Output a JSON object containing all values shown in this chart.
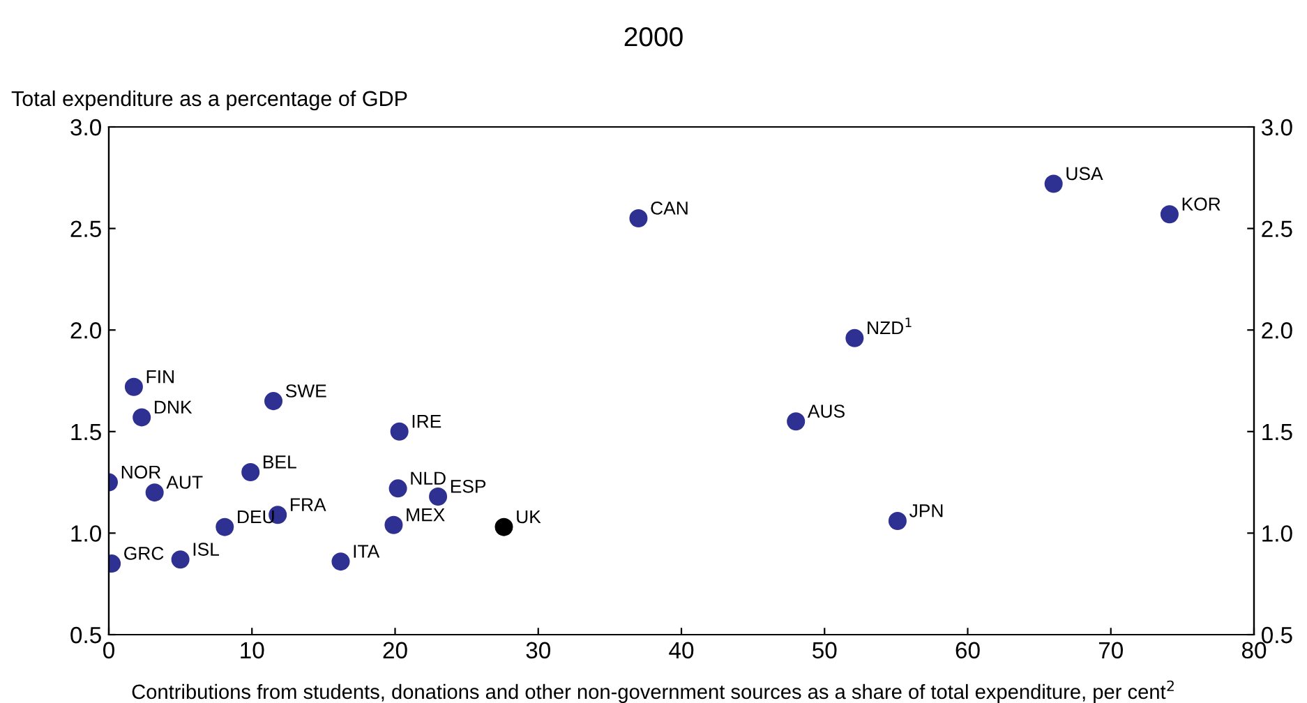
{
  "chart_data": {
    "type": "scatter",
    "title": "2000",
    "ylabel": "Total expenditure as a percentage of GDP",
    "xlabel": "Contributions from students, donations and other non-government sources as a share of total expenditure, per cent$^{2}$",
    "x": [
      0,
      0.2,
      1.75,
      2.3,
      3.2,
      5,
      8.1,
      9.9,
      11.5,
      11.8,
      16.2,
      20.3,
      20.2,
      19.9,
      23,
      27.6,
      37,
      48,
      52.1,
      55.1,
      66,
      74.1
    ],
    "values": [
      1.25,
      0.85,
      1.72,
      1.57,
      1.2,
      0.87,
      1.03,
      1.3,
      1.65,
      1.09,
      0.86,
      1.5,
      1.22,
      1.04,
      1.18,
      1.03,
      2.55,
      1.55,
      1.96,
      1.06,
      2.72,
      2.57
    ],
    "colors": [
      "#2e3192",
      "#2e3192",
      "#2e3192",
      "#2e3192",
      "#2e3192",
      "#2e3192",
      "#2e3192",
      "#2e3192",
      "#2e3192",
      "#2e3192",
      "#2e3192",
      "#2e3192",
      "#2e3192",
      "#2e3192",
      "#2e3192",
      "#000000",
      "#2e3192",
      "#2e3192",
      "#2e3192",
      "#2e3192",
      "#2e3192",
      "#2e3192"
    ],
    "marker": "circle",
    "annotations": [
      {
        "text": "NOR",
        "x": 0,
        "y": 1.25
      },
      {
        "text": "GRC",
        "x": 0.2,
        "y": 0.85
      },
      {
        "text": "FIN",
        "x": 1.75,
        "y": 1.72
      },
      {
        "text": "DNK",
        "x": 2.3,
        "y": 1.57
      },
      {
        "text": "AUT",
        "x": 3.2,
        "y": 1.2
      },
      {
        "text": "ISL",
        "x": 5,
        "y": 0.87
      },
      {
        "text": "DEU",
        "x": 8.1,
        "y": 1.03
      },
      {
        "text": "BEL",
        "x": 9.9,
        "y": 1.3
      },
      {
        "text": "SWE",
        "x": 11.5,
        "y": 1.65
      },
      {
        "text": "FRA",
        "x": 11.8,
        "y": 1.09
      },
      {
        "text": "ITA",
        "x": 16.2,
        "y": 0.86
      },
      {
        "text": "IRE",
        "x": 20.3,
        "y": 1.5
      },
      {
        "text": "NLD",
        "x": 20.2,
        "y": 1.22
      },
      {
        "text": "MEX",
        "x": 19.9,
        "y": 1.04
      },
      {
        "text": "ESP",
        "x": 23,
        "y": 1.18
      },
      {
        "text": "UK",
        "x": 27.6,
        "y": 1.03
      },
      {
        "text": "CAN",
        "x": 37,
        "y": 2.55
      },
      {
        "text": "AUS",
        "x": 48,
        "y": 1.55
      },
      {
        "text": "NZD$^{1}$",
        "x": 52.1,
        "y": 1.96
      },
      {
        "text": "JPN",
        "x": 55.1,
        "y": 1.06
      },
      {
        "text": "USA",
        "x": 66,
        "y": 2.72
      },
      {
        "text": "KOR",
        "x": 74.1,
        "y": 2.57
      }
    ],
    "xlim": [
      0,
      80
    ],
    "xticks": [
      0,
      10,
      20,
      30,
      40,
      50,
      60,
      70,
      80
    ],
    "ylim": [
      0.5,
      3.0
    ],
    "yticks": [
      {
        "value": 0.5,
        "label": "0.5"
      },
      {
        "value": 1.0,
        "label": "1.0"
      },
      {
        "value": 1.5,
        "label": "1.5"
      },
      {
        "value": 2.0,
        "label": "2.0"
      },
      {
        "value": 2.5,
        "label": "2.5"
      },
      {
        "value": 3.0,
        "label": "3.0"
      }
    ],
    "y2lim": [
      0.5,
      3.0
    ],
    "y2ticks": [
      {
        "value": 0.5,
        "label": "0.5"
      },
      {
        "value": 1.0,
        "label": "1.0"
      },
      {
        "value": 1.5,
        "label": "1.5"
      },
      {
        "value": 2.0,
        "label": "2.0"
      },
      {
        "value": 2.5,
        "label": "2.5"
      },
      {
        "value": 3.0,
        "label": "3.0"
      }
    ],
    "grid": false,
    "legend": false
  }
}
